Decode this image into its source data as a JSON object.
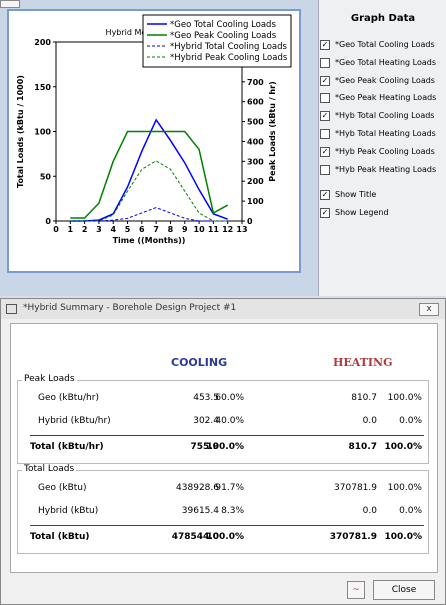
{
  "chart_data": {
    "type": "line",
    "title": "Hybrid Monthly Loads",
    "x": [
      1,
      2,
      3,
      4,
      5,
      6,
      7,
      8,
      9,
      10,
      11,
      12
    ],
    "xlim": [
      0,
      13
    ],
    "xticks": [
      0,
      1,
      2,
      3,
      4,
      5,
      6,
      7,
      8,
      9,
      10,
      11,
      12,
      13
    ],
    "ylim": [
      0,
      200
    ],
    "yticks": [
      0,
      50,
      100,
      150,
      200
    ],
    "y2lim": [
      0,
      900
    ],
    "y2ticks": [
      0,
      100,
      200,
      300,
      400,
      500,
      600,
      700
    ],
    "xlabel": "Time ((Months))",
    "ylabel": "Total Loads (kBtu / 1000)",
    "y2label": "Peak Loads (kBtu / hr)",
    "legend": "upper right",
    "grid": false,
    "series": [
      {
        "name": "*Geo Total Cooling Loads",
        "color": "#0000ff",
        "dashed": false,
        "values": [
          0,
          0,
          1,
          8,
          38,
          78,
          113,
          90,
          65,
          35,
          8,
          2
        ]
      },
      {
        "name": "*Geo Peak Cooling Loads",
        "color": "#008000",
        "dashed": false,
        "axis": "y2",
        "values": [
          15,
          15,
          90,
          300,
          450,
          450,
          450,
          450,
          450,
          360,
          40,
          80
        ]
      },
      {
        "name": "*Hybrid Total Cooling Loads",
        "color": "#0000ff",
        "dashed": true,
        "values": [
          0,
          0,
          0,
          1,
          3,
          9,
          15,
          9,
          3,
          0,
          0,
          0
        ]
      },
      {
        "name": "*Hybrid Peak Cooling Loads",
        "color": "#008000",
        "dashed": true,
        "axis": "y2",
        "values": [
          0,
          0,
          0,
          30,
          150,
          260,
          302.4,
          260,
          150,
          40,
          0,
          0
        ]
      }
    ]
  },
  "graph_panel": {
    "title": "Graph Data",
    "options": [
      {
        "label": "*Geo Total Cooling Loads",
        "checked": true
      },
      {
        "label": "*Geo Total Heating Loads",
        "checked": false
      },
      {
        "label": "*Geo Peak Cooling Loads",
        "checked": true
      },
      {
        "label": "*Geo Peak Heating Loads",
        "checked": false
      },
      {
        "label": "*Hyb Total Cooling Loads",
        "checked": true
      },
      {
        "label": "*Hyb Total Heating Loads",
        "checked": false
      },
      {
        "label": "*Hyb Peak Cooling Loads",
        "checked": true
      },
      {
        "label": "*Hyb Peak Heating Loads",
        "checked": false
      },
      {
        "label": "Show Title",
        "checked": true
      },
      {
        "label": "Show Legend",
        "checked": true
      }
    ]
  },
  "summary_window": {
    "title": "*Hybrid Summary - Borehole Design Project #1",
    "cooling_header": "COOLING",
    "heating_header": "HEATING",
    "groups": [
      {
        "title": "Peak Loads",
        "rows": [
          {
            "label": "Geo (kBtu/hr)",
            "cells": [
              "453.5",
              "60.0%",
              "810.7",
              "100.0%"
            ],
            "total": false
          },
          {
            "label": "Hybrid (kBtu/hr)",
            "cells": [
              "302.4",
              "40.0%",
              "0.0",
              "0.0%"
            ],
            "total": false
          },
          {
            "label": "Total (kBtu/hr)",
            "cells": [
              "755.9",
              "100.0%",
              "810.7",
              "100.0%"
            ],
            "total": true
          }
        ]
      },
      {
        "title": "Total Loads",
        "rows": [
          {
            "label": "Geo (kBtu)",
            "cells": [
              "438928.6",
              "91.7%",
              "370781.9",
              "100.0%"
            ],
            "total": false
          },
          {
            "label": "Hybrid (kBtu)",
            "cells": [
              "39615.4",
              "8.3%",
              "0.0",
              "0.0%"
            ],
            "total": false
          },
          {
            "label": "Total (kBtu)",
            "cells": [
              "478544.0",
              "100.0%",
              "370781.9",
              "100.0%"
            ],
            "total": true
          }
        ]
      }
    ],
    "close_button": "Close"
  }
}
